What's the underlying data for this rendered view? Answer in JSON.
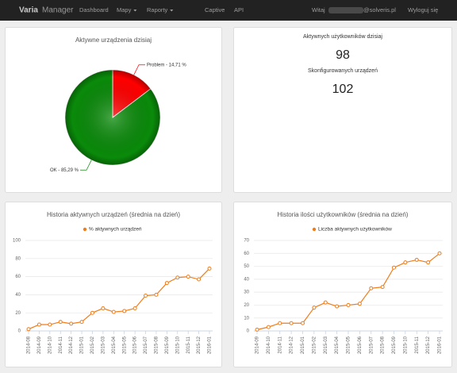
{
  "nav": {
    "brand_bold": "Varia",
    "brand_light": "Manager",
    "items": [
      "Dashboard",
      "Mapy",
      "Raporty",
      "Captive",
      "API"
    ],
    "dropdowns": [
      false,
      true,
      true,
      false,
      false
    ],
    "greeting": "Witaj",
    "email_domain": "@solveris.pl",
    "logout": "Wyloguj się"
  },
  "stats": {
    "users_label": "Aktywnych użytkowników dzisiaj",
    "users_value": 98,
    "devices_label": "Skonfigurowanych urządzeń",
    "devices_value": 102
  },
  "chart_data": [
    {
      "type": "pie",
      "title": "Aktywne urządzenia dzisiaj",
      "categories": [
        "Problem",
        "OK"
      ],
      "values": [
        14.71,
        85.29
      ],
      "value_labels": [
        "Problem - 14,71 %",
        "OK - 85,29 %"
      ],
      "colors": [
        "#ff0000",
        "#0a8a0a"
      ]
    },
    {
      "type": "line",
      "title": "Historia aktywnych urządzeń (średnia na dzień)",
      "categories": [
        "2014-08",
        "2014-09",
        "2014-10",
        "2014-11",
        "2014-12",
        "2015-01",
        "2015-02",
        "2015-03",
        "2015-04",
        "2015-05",
        "2015-06",
        "2015-07",
        "2015-08",
        "2015-09",
        "2015-10",
        "2015-11",
        "2015-12",
        "2016-01"
      ],
      "series": [
        {
          "name": "% aktywnych urządzeń",
          "color": "#f07d1b",
          "values": [
            2,
            7,
            7,
            10,
            8,
            10,
            20,
            25,
            21,
            22,
            25,
            39,
            40,
            53,
            59,
            60,
            57,
            69
          ]
        }
      ],
      "ylim": [
        0,
        100
      ],
      "yticks": [
        0,
        20,
        40,
        60,
        80,
        100
      ],
      "grid": true
    },
    {
      "type": "line",
      "title": "Historia ilości użytkowników (średnia na dzień)",
      "categories": [
        "2014-09",
        "2014-10",
        "2014-11",
        "2014-12",
        "2015-01",
        "2015-02",
        "2015-03",
        "2015-04",
        "2015-05",
        "2015-06",
        "2015-07",
        "2015-08",
        "2015-09",
        "2015-10",
        "2015-11",
        "2015-12",
        "2016-01"
      ],
      "series": [
        {
          "name": "Liczba aktywnych użytkowników",
          "color": "#f07d1b",
          "values": [
            1,
            3,
            6,
            6,
            6,
            18,
            22,
            19,
            20,
            21,
            33,
            34,
            49,
            53,
            55,
            53,
            60
          ]
        }
      ],
      "ylim": [
        0,
        70
      ],
      "yticks": [
        0,
        10,
        20,
        30,
        40,
        50,
        60,
        70
      ],
      "grid": true
    }
  ]
}
